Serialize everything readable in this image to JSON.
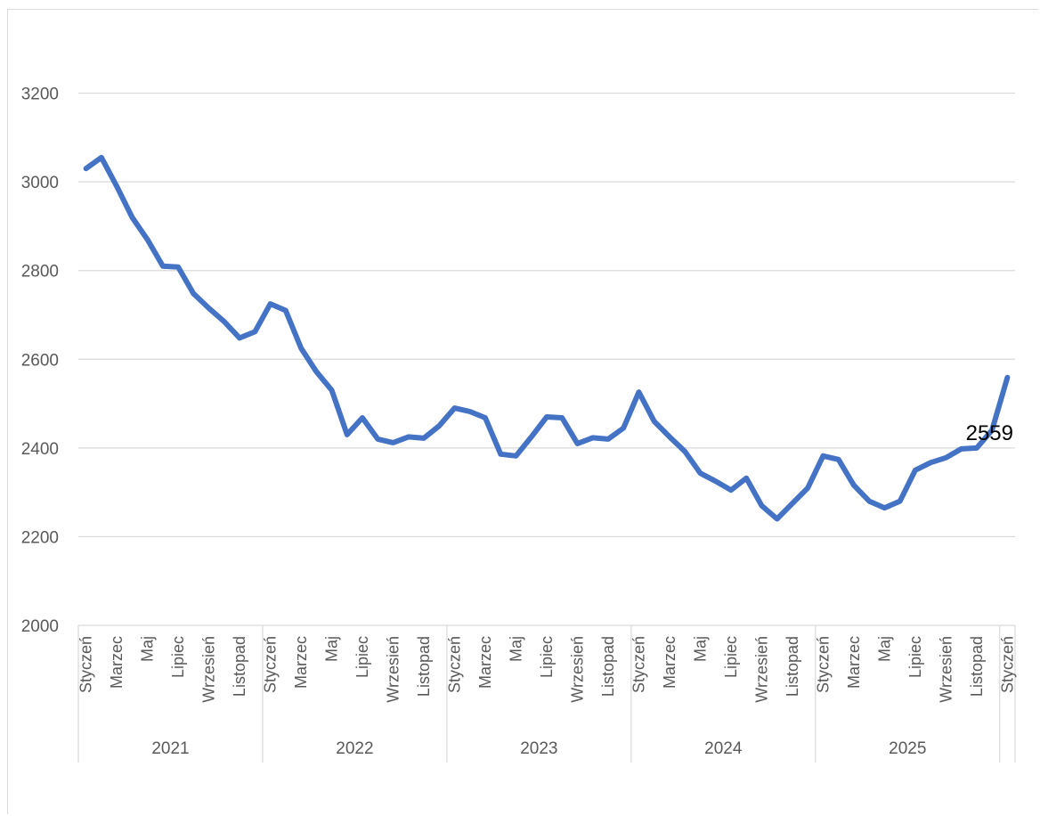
{
  "chart_data": {
    "type": "line",
    "title": "",
    "xlabel": "",
    "ylabel": "",
    "ylim": [
      2000,
      3200
    ],
    "ymax_plot": 3400,
    "yticks": [
      2000,
      2200,
      2400,
      2600,
      2800,
      3000,
      3200
    ],
    "grid": true,
    "legend": "none",
    "line_color": "#4472c4",
    "groups": [
      {
        "label": "2021",
        "months": 12
      },
      {
        "label": "2022",
        "months": 12
      },
      {
        "label": "2023",
        "months": 12
      },
      {
        "label": "2024",
        "months": 12
      },
      {
        "label": "2025",
        "months": 12
      }
    ],
    "month_labels": [
      "Styczeń",
      "",
      "Marzec",
      "",
      "Maj",
      "",
      "Lipiec",
      "",
      "Wrzesień",
      "",
      "Listopad",
      ""
    ],
    "final_label": "Styczeń",
    "series": [
      {
        "values": [
          3030,
          3055,
          2990,
          2920,
          2870,
          2810,
          2808,
          2748,
          2715,
          2685,
          2648,
          2662,
          2725,
          2710,
          2625,
          2572,
          2530,
          2430,
          2468,
          2420,
          2412,
          2425,
          2422,
          2450,
          2490,
          2482,
          2468,
          2386,
          2382,
          2425,
          2470,
          2468,
          2410,
          2423,
          2420,
          2445,
          2526,
          2460,
          2425,
          2392,
          2343,
          2325,
          2305,
          2332,
          2270,
          2240,
          2275,
          2310,
          2382,
          2374,
          2316,
          2280,
          2265,
          2280,
          2350,
          2367,
          2378,
          2398,
          2400,
          2440,
          2559
        ]
      }
    ],
    "data_label": {
      "text": "2559",
      "index": 60
    }
  }
}
